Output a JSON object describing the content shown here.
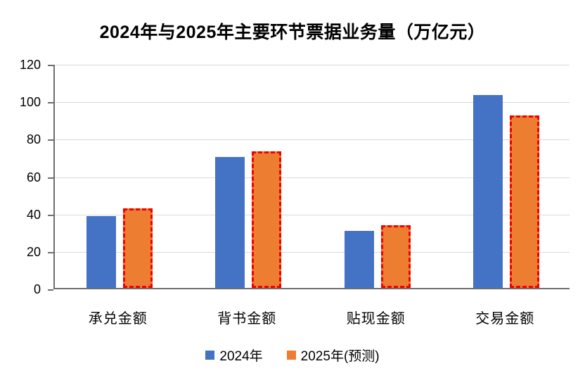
{
  "title": "2024年与2025年主要环节票据业务量（万亿元）",
  "colors": {
    "series_2024": "#4472c4",
    "series_2025_fill": "#ed7d31",
    "series_2025_dash_border": "#f00000",
    "axis_line": "#6e6e6e",
    "gridline": "#d9d9d9",
    "text": "#000000",
    "background": "#ffffff"
  },
  "chart_data": {
    "type": "bar",
    "title": "2024年与2025年主要环节票据业务量（万亿元）",
    "categories": [
      "承兑金额",
      "背书金额",
      "贴现金额",
      "交易金额"
    ],
    "series": [
      {
        "name": "2024年",
        "values": [
          38.5,
          70,
          30.5,
          103
        ],
        "color": "#4472c4",
        "style": "solid"
      },
      {
        "name": "2025年(预测)",
        "values": [
          42.5,
          73,
          33.5,
          92
        ],
        "color": "#ed7d31",
        "style": "dashed-red-outline"
      }
    ],
    "xlabel": "",
    "ylabel": "",
    "ylim": [
      0,
      120
    ],
    "yticks": [
      0,
      20,
      40,
      60,
      80,
      100,
      120
    ],
    "grid": true,
    "legend_position": "bottom"
  },
  "legend": {
    "items": [
      {
        "label": "2024年",
        "color": "#4472c4",
        "style": "solid"
      },
      {
        "label": "2025年(预测)",
        "color": "#ed7d31",
        "style": "dashed-red-outline"
      }
    ]
  }
}
